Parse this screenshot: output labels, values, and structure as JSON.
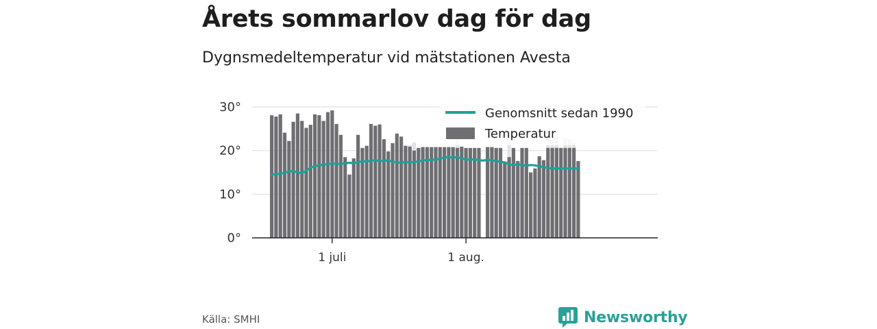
{
  "header": {
    "title": "Årets sommarlov dag för dag",
    "subtitle": "Dygnsmedeltemperatur vid mätstationen Avesta"
  },
  "footer": {
    "source": "Källa: SMHI",
    "brand": "Newsworthy"
  },
  "colors": {
    "bar": "#6e6e73",
    "bar_background": "#e2e2e2",
    "average_line": "#1ba29a",
    "grid": "#e0e0e0",
    "axis": "#222222",
    "brand": "#2aa198"
  },
  "chart_data": {
    "type": "bar",
    "y_ticks": [
      "0°",
      "10°",
      "20°",
      "30°"
    ],
    "y_tick_values": [
      0,
      10,
      20,
      30
    ],
    "ylim": [
      0,
      30
    ],
    "x_ticks": [
      {
        "label": "1 juli",
        "date": "2018-07-01"
      },
      {
        "label": "1 aug.",
        "date": "2018-08-01"
      }
    ],
    "legend": {
      "position": "top-right",
      "items": [
        {
          "label": "Genomsnitt sedan 1990",
          "kind": "line"
        },
        {
          "label": "Temperatur",
          "kind": "bar"
        }
      ]
    },
    "grid": true,
    "x_dates": [
      "2018-06-17",
      "2018-06-18",
      "2018-06-19",
      "2018-06-20",
      "2018-06-21",
      "2018-06-22",
      "2018-06-23",
      "2018-06-24",
      "2018-06-25",
      "2018-06-26",
      "2018-06-27",
      "2018-06-28",
      "2018-06-29",
      "2018-06-30",
      "2018-07-01",
      "2018-07-02",
      "2018-07-03",
      "2018-07-04",
      "2018-07-05",
      "2018-07-06",
      "2018-07-07",
      "2018-07-08",
      "2018-07-09",
      "2018-07-10",
      "2018-07-11",
      "2018-07-12",
      "2018-07-13",
      "2018-07-14",
      "2018-07-15",
      "2018-07-16",
      "2018-07-17",
      "2018-07-18",
      "2018-07-19",
      "2018-07-20",
      "2018-07-21",
      "2018-07-22",
      "2018-07-23",
      "2018-07-24",
      "2018-07-25",
      "2018-07-26",
      "2018-07-27",
      "2018-07-28",
      "2018-07-29",
      "2018-07-30",
      "2018-07-31",
      "2018-08-01",
      "2018-08-02",
      "2018-08-03",
      "2018-08-04",
      "2018-08-05",
      "2018-08-06",
      "2018-08-07",
      "2018-08-08",
      "2018-08-09",
      "2018-08-10",
      "2018-08-11",
      "2018-08-12",
      "2018-08-13",
      "2018-08-14",
      "2018-08-15",
      "2018-08-16",
      "2018-08-17",
      "2018-08-18",
      "2018-08-19",
      "2018-08-20",
      "2018-08-21",
      "2018-08-22",
      "2018-08-23",
      "2018-08-24",
      "2018-08-25",
      "2018-08-26",
      "2018-08-27",
      "2018-08-28",
      "2018-08-29",
      "2018-08-30",
      "2018-08-31",
      "2018-09-01",
      "2018-09-02",
      "2018-09-03",
      "2018-09-04",
      "2018-09-05",
      "2018-09-06",
      "2018-09-07",
      "2018-09-08",
      "2018-09-09",
      "2018-09-10",
      "2018-09-11",
      "2018-09-12",
      "2018-09-13",
      "2018-09-14",
      "2018-09-15",
      "2018-09-16"
    ],
    "series": [
      {
        "name": "Temperatur",
        "values": [
          28.1,
          27.8,
          28.3,
          24.1,
          22.2,
          26.6,
          28.5,
          26.8,
          25.2,
          25.9,
          28.3,
          28.1,
          26.8,
          28.8,
          29.2,
          26.1,
          23.6,
          18.5,
          14.5,
          18.2,
          23.6,
          20.6,
          21.1,
          26.1,
          25.7,
          26.0,
          22.6,
          19.8,
          21.7,
          23.9,
          23.2,
          21.1,
          20.9,
          20.0,
          20.6,
          20.8,
          20.8,
          20.8,
          20.8,
          20.8,
          20.8,
          20.8,
          20.8,
          20.6,
          20.9,
          20.6,
          20.6,
          20.6,
          20.6,
          null,
          20.8,
          20.8,
          20.6,
          20.6,
          17.5,
          18.5,
          20.6,
          17.6,
          20.6,
          20.6,
          15.0,
          15.9,
          18.7,
          17.8,
          20.6,
          20.6,
          20.6,
          20.6,
          20.6,
          20.6,
          20.6,
          17.6,
          null,
          null,
          null,
          null,
          null,
          null,
          null,
          null,
          null,
          null,
          null,
          null,
          null,
          null,
          null,
          null,
          null,
          null,
          null,
          null
        ]
      },
      {
        "name": "Genomsnitt sedan 1990",
        "values": [
          14.5,
          14.6,
          14.7,
          14.9,
          15.2,
          15.3,
          15.0,
          14.8,
          15.4,
          16.1,
          16.4,
          16.6,
          16.8,
          16.9,
          17.0,
          17.0,
          16.9,
          17.1,
          17.2,
          17.1,
          17.3,
          17.6,
          17.5,
          17.7,
          17.8,
          17.6,
          17.6,
          17.8,
          17.4,
          17.3,
          17.2,
          17.4,
          17.3,
          17.4,
          17.5,
          17.8,
          17.8,
          17.9,
          17.9,
          18.2,
          18.4,
          18.5,
          18.4,
          18.5,
          18.2,
          18.0,
          17.9,
          18.0,
          17.8,
          17.7,
          17.9,
          17.8,
          17.6,
          17.4,
          17.3,
          16.8,
          16.7,
          16.8,
          16.7,
          16.5,
          16.7,
          16.6,
          16.4,
          16.2,
          16.0,
          15.9,
          15.9,
          15.9,
          15.9,
          15.9,
          15.9,
          15.9,
          null,
          null,
          null,
          null,
          null,
          null,
          null,
          null,
          null,
          null,
          null,
          null,
          null,
          null,
          null,
          null,
          null,
          null,
          null,
          null
        ]
      }
    ],
    "previous_years_max": [
      null,
      null,
      null,
      null,
      null,
      null,
      null,
      null,
      null,
      null,
      null,
      null,
      null,
      null,
      null,
      null,
      null,
      null,
      null,
      null,
      null,
      null,
      null,
      null,
      null,
      null,
      null,
      null,
      null,
      null,
      null,
      null,
      21.2,
      21.9,
      null,
      null,
      null,
      null,
      null,
      null,
      null,
      null,
      null,
      23.2,
      null,
      null,
      null,
      null,
      null,
      null,
      null,
      null,
      null,
      null,
      null,
      23.1,
      null,
      null,
      null,
      null,
      null,
      null,
      null,
      null,
      21.4,
      22.3,
      24.2,
      null,
      22.9,
      22.6,
      21.9,
      null,
      null,
      null,
      null,
      null,
      null,
      null,
      null,
      null,
      null,
      null,
      null,
      null,
      null,
      null,
      null,
      null,
      null,
      null,
      null,
      null
    ]
  }
}
